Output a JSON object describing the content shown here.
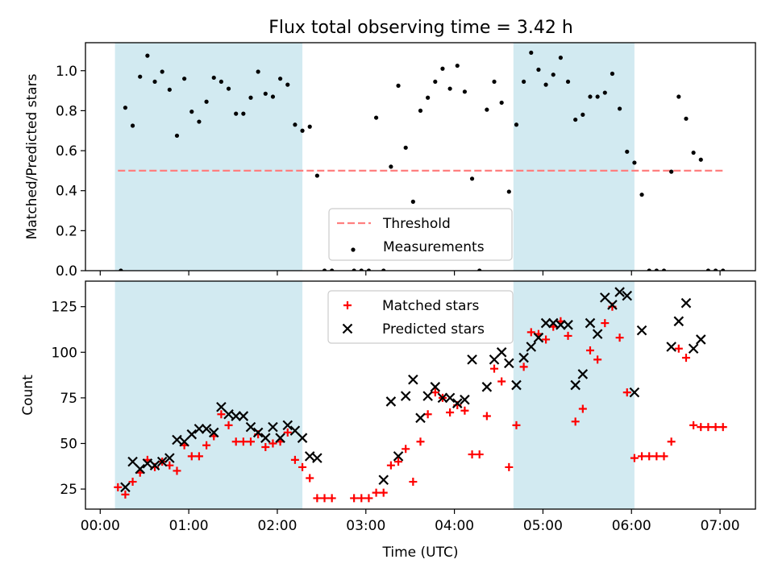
{
  "title": "Flux total observing time = 3.42 h",
  "colors": {
    "shade": "#add8e6",
    "threshold": "#ff7f7f",
    "measurement": "#000000",
    "matched": "#ff0000",
    "predicted": "#000000"
  },
  "chart_data": [
    {
      "type": "scatter",
      "panel": "top",
      "ylabel": "Matched/Predicted stars",
      "ylim": [
        0,
        1.14
      ],
      "yticks": [
        "0.0",
        "0.2",
        "0.4",
        "0.6",
        "0.8",
        "1.0"
      ],
      "xlim": [
        "23:50",
        "07:24"
      ],
      "shaded_intervals": [
        [
          "00:10",
          "02:17"
        ],
        [
          "04:40",
          "06:02"
        ]
      ],
      "threshold": {
        "name": "Threshold",
        "value": 0.5,
        "x": [
          "00:12",
          "07:02"
        ]
      },
      "legend": {
        "placement": "lower-center",
        "entries": [
          "Threshold",
          "Measurements"
        ]
      },
      "series": [
        {
          "name": "Measurements",
          "points": [
            [
              "00:14",
              0.0
            ],
            [
              "00:17",
              0.815
            ],
            [
              "00:22",
              0.725
            ],
            [
              "00:27",
              0.97
            ],
            [
              "00:32",
              1.075
            ],
            [
              "00:37",
              0.945
            ],
            [
              "00:42",
              0.995
            ],
            [
              "00:47",
              0.905
            ],
            [
              "00:52",
              0.675
            ],
            [
              "00:57",
              0.96
            ],
            [
              "01:02",
              0.795
            ],
            [
              "01:07",
              0.745
            ],
            [
              "01:12",
              0.845
            ],
            [
              "01:17",
              0.965
            ],
            [
              "01:22",
              0.945
            ],
            [
              "01:27",
              0.91
            ],
            [
              "01:32",
              0.785
            ],
            [
              "01:37",
              0.785
            ],
            [
              "01:42",
              0.865
            ],
            [
              "01:47",
              0.995
            ],
            [
              "01:52",
              0.885
            ],
            [
              "01:57",
              0.87
            ],
            [
              "02:02",
              0.96
            ],
            [
              "02:07",
              0.93
            ],
            [
              "02:12",
              0.73
            ],
            [
              "02:17",
              0.7
            ],
            [
              "02:22",
              0.72
            ],
            [
              "02:27",
              0.475
            ],
            [
              "02:32",
              0.0
            ],
            [
              "02:37",
              0.0
            ],
            [
              "02:52",
              0.0
            ],
            [
              "02:57",
              0.0
            ],
            [
              "03:02",
              0.0
            ],
            [
              "03:07",
              0.765
            ],
            [
              "03:12",
              0.0
            ],
            [
              "03:17",
              0.52
            ],
            [
              "03:22",
              0.925
            ],
            [
              "03:27",
              0.615
            ],
            [
              "03:32",
              0.345
            ],
            [
              "03:37",
              0.8
            ],
            [
              "03:42",
              0.865
            ],
            [
              "03:47",
              0.945
            ],
            [
              "03:52",
              1.01
            ],
            [
              "03:57",
              0.91
            ],
            [
              "04:02",
              1.025
            ],
            [
              "04:07",
              0.895
            ],
            [
              "04:12",
              0.46
            ],
            [
              "04:17",
              0.0
            ],
            [
              "04:22",
              0.805
            ],
            [
              "04:27",
              0.945
            ],
            [
              "04:32",
              0.84
            ],
            [
              "04:37",
              0.395
            ],
            [
              "04:42",
              0.73
            ],
            [
              "04:47",
              0.945
            ],
            [
              "04:52",
              1.09
            ],
            [
              "04:57",
              1.005
            ],
            [
              "05:02",
              0.93
            ],
            [
              "05:07",
              0.98
            ],
            [
              "05:12",
              1.065
            ],
            [
              "05:17",
              0.945
            ],
            [
              "05:22",
              0.755
            ],
            [
              "05:27",
              0.78
            ],
            [
              "05:32",
              0.87
            ],
            [
              "05:37",
              0.87
            ],
            [
              "05:42",
              0.89
            ],
            [
              "05:47",
              0.985
            ],
            [
              "05:52",
              0.81
            ],
            [
              "05:57",
              0.595
            ],
            [
              "06:02",
              0.54
            ],
            [
              "06:07",
              0.38
            ],
            [
              "06:12",
              0.0
            ],
            [
              "06:17",
              0.0
            ],
            [
              "06:22",
              0.0
            ],
            [
              "06:27",
              0.495
            ],
            [
              "06:32",
              0.87
            ],
            [
              "06:37",
              0.76
            ],
            [
              "06:42",
              0.59
            ],
            [
              "06:47",
              0.555
            ],
            [
              "06:52",
              0.0
            ],
            [
              "06:57",
              0.0
            ],
            [
              "07:02",
              0.0
            ]
          ]
        }
      ]
    },
    {
      "type": "scatter",
      "panel": "bottom",
      "xlabel": "Time (UTC)",
      "ylabel": "Count",
      "ylim": [
        14,
        139
      ],
      "yticks": [
        "25",
        "50",
        "75",
        "100",
        "125"
      ],
      "xticks": [
        "00:00",
        "01:00",
        "02:00",
        "03:00",
        "04:00",
        "05:00",
        "06:00",
        "07:00"
      ],
      "xlim": [
        "23:50",
        "07:24"
      ],
      "shaded_intervals": [
        [
          "00:10",
          "02:17"
        ],
        [
          "04:40",
          "06:02"
        ]
      ],
      "legend": {
        "placement": "upper-center",
        "entries": [
          "Matched stars",
          "Predicted stars"
        ]
      },
      "series": [
        {
          "name": "Matched stars",
          "marker": "plus",
          "points": [
            [
              "00:12",
              26
            ],
            [
              "00:17",
              22
            ],
            [
              "00:22",
              29
            ],
            [
              "00:27",
              34
            ],
            [
              "00:32",
              41
            ],
            [
              "00:37",
              37
            ],
            [
              "00:42",
              40
            ],
            [
              "00:47",
              38
            ],
            [
              "00:52",
              35
            ],
            [
              "00:57",
              49
            ],
            [
              "01:02",
              43
            ],
            [
              "01:07",
              43
            ],
            [
              "01:12",
              49
            ],
            [
              "01:17",
              54
            ],
            [
              "01:22",
              66
            ],
            [
              "01:27",
              60
            ],
            [
              "01:32",
              51
            ],
            [
              "01:37",
              51
            ],
            [
              "01:42",
              51
            ],
            [
              "01:47",
              55
            ],
            [
              "01:52",
              48
            ],
            [
              "01:57",
              50
            ],
            [
              "02:02",
              51
            ],
            [
              "02:07",
              56
            ],
            [
              "02:12",
              41
            ],
            [
              "02:17",
              37
            ],
            [
              "02:22",
              31
            ],
            [
              "02:27",
              20
            ],
            [
              "02:32",
              20
            ],
            [
              "02:37",
              20
            ],
            [
              "02:52",
              20
            ],
            [
              "02:57",
              20
            ],
            [
              "03:02",
              20
            ],
            [
              "03:07",
              23
            ],
            [
              "03:12",
              23
            ],
            [
              "03:17",
              38
            ],
            [
              "03:22",
              40
            ],
            [
              "03:27",
              47
            ],
            [
              "03:32",
              29
            ],
            [
              "03:37",
              51
            ],
            [
              "03:42",
              66
            ],
            [
              "03:47",
              78
            ],
            [
              "03:52",
              75
            ],
            [
              "03:57",
              67
            ],
            [
              "04:02",
              71
            ],
            [
              "04:07",
              68
            ],
            [
              "04:12",
              44
            ],
            [
              "04:17",
              44
            ],
            [
              "04:22",
              65
            ],
            [
              "04:27",
              91
            ],
            [
              "04:32",
              84
            ],
            [
              "04:37",
              37
            ],
            [
              "04:42",
              60
            ],
            [
              "04:47",
              92
            ],
            [
              "04:52",
              111
            ],
            [
              "04:57",
              110
            ],
            [
              "05:02",
              107
            ],
            [
              "05:07",
              114
            ],
            [
              "05:12",
              117
            ],
            [
              "05:17",
              109
            ],
            [
              "05:22",
              62
            ],
            [
              "05:27",
              69
            ],
            [
              "05:32",
              101
            ],
            [
              "05:37",
              96
            ],
            [
              "05:42",
              116
            ],
            [
              "05:47",
              125
            ],
            [
              "05:52",
              108
            ],
            [
              "05:57",
              78
            ],
            [
              "06:02",
              42
            ],
            [
              "06:07",
              43
            ],
            [
              "06:12",
              43
            ],
            [
              "06:17",
              43
            ],
            [
              "06:22",
              43
            ],
            [
              "06:27",
              51
            ],
            [
              "06:32",
              102
            ],
            [
              "06:37",
              97
            ],
            [
              "06:42",
              60
            ],
            [
              "06:47",
              59
            ],
            [
              "06:52",
              59
            ],
            [
              "06:57",
              59
            ],
            [
              "07:02",
              59
            ]
          ]
        },
        {
          "name": "Predicted stars",
          "marker": "x",
          "points": [
            [
              "00:17",
              26
            ],
            [
              "00:22",
              40
            ],
            [
              "00:27",
              36
            ],
            [
              "00:32",
              39
            ],
            [
              "00:37",
              38
            ],
            [
              "00:42",
              40
            ],
            [
              "00:47",
              42
            ],
            [
              "00:52",
              52
            ],
            [
              "00:57",
              51
            ],
            [
              "01:02",
              55
            ],
            [
              "01:07",
              58
            ],
            [
              "01:12",
              58
            ],
            [
              "01:17",
              56
            ],
            [
              "01:22",
              70
            ],
            [
              "01:27",
              66
            ],
            [
              "01:32",
              65
            ],
            [
              "01:37",
              65
            ],
            [
              "01:42",
              59
            ],
            [
              "01:47",
              56
            ],
            [
              "01:52",
              53
            ],
            [
              "01:57",
              59
            ],
            [
              "02:02",
              53
            ],
            [
              "02:07",
              60
            ],
            [
              "02:12",
              57
            ],
            [
              "02:17",
              53
            ],
            [
              "02:22",
              43
            ],
            [
              "02:27",
              42
            ],
            [
              "03:12",
              30
            ],
            [
              "03:17",
              73
            ],
            [
              "03:22",
              43
            ],
            [
              "03:27",
              76
            ],
            [
              "03:32",
              85
            ],
            [
              "03:37",
              64
            ],
            [
              "03:42",
              76
            ],
            [
              "03:47",
              81
            ],
            [
              "03:52",
              75
            ],
            [
              "03:57",
              75
            ],
            [
              "04:02",
              72
            ],
            [
              "04:07",
              74
            ],
            [
              "04:12",
              96
            ],
            [
              "04:22",
              81
            ],
            [
              "04:27",
              96
            ],
            [
              "04:32",
              100
            ],
            [
              "04:37",
              94
            ],
            [
              "04:42",
              82
            ],
            [
              "04:47",
              97
            ],
            [
              "04:52",
              103
            ],
            [
              "04:57",
              108
            ],
            [
              "05:02",
              116
            ],
            [
              "05:07",
              116
            ],
            [
              "05:12",
              115
            ],
            [
              "05:17",
              115
            ],
            [
              "05:22",
              82
            ],
            [
              "05:27",
              88
            ],
            [
              "05:32",
              116
            ],
            [
              "05:37",
              110
            ],
            [
              "05:42",
              130
            ],
            [
              "05:47",
              126
            ],
            [
              "05:52",
              133
            ],
            [
              "05:57",
              131
            ],
            [
              "06:02",
              78
            ],
            [
              "06:07",
              112
            ],
            [
              "06:27",
              103
            ],
            [
              "06:32",
              117
            ],
            [
              "06:37",
              127
            ],
            [
              "06:42",
              102
            ],
            [
              "06:47",
              107
            ]
          ]
        }
      ]
    }
  ]
}
